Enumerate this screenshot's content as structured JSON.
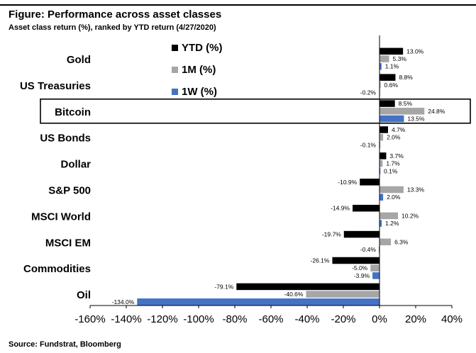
{
  "header": {
    "title": "Figure: Performance across asset classes",
    "subtitle": "Asset class return (%), ranked by YTD return (4/27/2020)"
  },
  "footer": {
    "source": "Source: Fundstrat, Bloomberg"
  },
  "chart_data": {
    "type": "bar",
    "orientation": "horizontal",
    "title": "",
    "xlabel": "",
    "ylabel": "",
    "xlim": [
      -160,
      40
    ],
    "grid": false,
    "legend_position": "top-left",
    "highlighted_category": "Bitcoin",
    "categories": [
      "Gold",
      "US Treasuries",
      "Bitcoin",
      "US Bonds",
      "Dollar",
      "S&P 500",
      "MSCI World",
      "MSCI EM",
      "Commodities",
      "Oil"
    ],
    "series": [
      {
        "name": "YTD (%)",
        "color": "#000000",
        "values": [
          13.0,
          8.8,
          8.5,
          4.7,
          3.7,
          -10.9,
          -14.9,
          -19.7,
          -26.1,
          -79.1
        ],
        "labels": [
          "13.0%",
          "8.8%",
          "8.5%",
          "4.7%",
          "3.7%",
          "-10.9%",
          "-14.9%",
          "-19.7%",
          "-26.1%",
          "-79.1%"
        ]
      },
      {
        "name": "1M (%)",
        "color": "#a6a6a6",
        "values": [
          5.3,
          0.6,
          24.8,
          2.0,
          1.7,
          13.3,
          10.2,
          6.3,
          -5.0,
          -40.6
        ],
        "labels": [
          "5.3%",
          "0.6%",
          "24.8%",
          "2.0%",
          "1.7%",
          "13.3%",
          "10.2%",
          "6.3%",
          "-5.0%",
          "-40.6%"
        ]
      },
      {
        "name": "1W (%)",
        "color": "#4472c4",
        "values": [
          1.1,
          -0.2,
          13.5,
          -0.1,
          0.1,
          2.0,
          1.2,
          -0.4,
          -3.9,
          -134.0
        ],
        "labels": [
          "1.1%",
          "-0.2%",
          "13.5%",
          "-0.1%",
          "0.1%",
          "2.0%",
          "1.2%",
          "-0.4%",
          "-3.9%",
          "-134.0%"
        ]
      }
    ],
    "x_ticks": [
      -160,
      -140,
      -120,
      -100,
      -80,
      -60,
      -40,
      -20,
      0,
      20,
      40
    ],
    "x_tick_labels": [
      "-160%",
      "-140%",
      "-120%",
      "-100%",
      "-80%",
      "-60%",
      "-40%",
      "-20%",
      "0%",
      "20%",
      "40%"
    ]
  }
}
